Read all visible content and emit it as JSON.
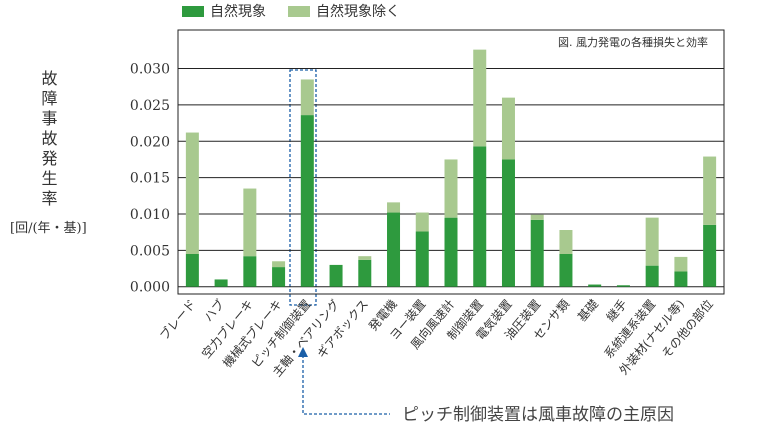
{
  "chart_data": {
    "type": "stacked_bar",
    "annotation": "図. 風力発電の各種損失と効率",
    "ylabel": "故障事故発生率",
    "yunit": "[回/(年・基)]",
    "callout": "ピッチ制御装置は風車故障の主原因",
    "categories": [
      "ブレード",
      "ハブ",
      "空力ブレーキ",
      "機械式ブレーキ",
      "ピッチ制御装置",
      "主軸・ベアリング",
      "ギアボックス",
      "発電機",
      "ヨー装置",
      "風向風速計",
      "制御装置",
      "電気装置",
      "油圧装置",
      "センサ類",
      "基礎",
      "継手",
      "系統連系装置",
      "外装材(ナセル等)",
      "その他の部位"
    ],
    "series": [
      {
        "name": "自然現象",
        "color": "#2e9a3e",
        "values": [
          0.0045,
          0.001,
          0.0042,
          0.0027,
          0.0236,
          0.003,
          0.0037,
          0.0102,
          0.0076,
          0.0095,
          0.0193,
          0.0175,
          0.0092,
          0.0045,
          0.0003,
          0.0002,
          0.0029,
          0.0021,
          0.0085
        ]
      },
      {
        "name": "自然現象除く",
        "color": "#a8c98f",
        "values": [
          0.0167,
          0,
          0.0093,
          0.0008,
          0.0049,
          0,
          0.0005,
          0.0014,
          0.0026,
          0.008,
          0.0133,
          0.0085,
          0.0007,
          0.0033,
          0,
          0,
          0.0066,
          0.002,
          0.0094
        ]
      }
    ],
    "ylim": [
      -0.001,
      0.0353
    ],
    "yticks": [
      {
        "value": 0,
        "label": "0.000"
      },
      {
        "value": 0.005,
        "label": "0.005"
      },
      {
        "value": 0.01,
        "label": "0.010"
      },
      {
        "value": 0.015,
        "label": "0.015"
      },
      {
        "value": 0.02,
        "label": "0.020"
      },
      {
        "value": 0.025,
        "label": "0.025"
      },
      {
        "value": 0.03,
        "label": "0.030"
      }
    ],
    "grid": true
  }
}
